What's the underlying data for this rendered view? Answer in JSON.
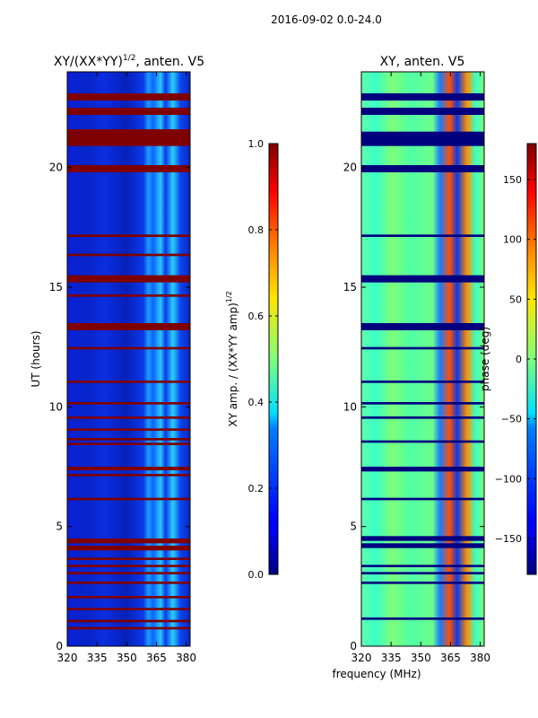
{
  "figure_title": "2016-09-02 0.0-24.0",
  "chart_data": [
    {
      "type": "heatmap",
      "title": "XY/(XX*YY)",
      "title_superscript": "1/2",
      "title_suffix": ", anten. V5",
      "xlabel": "",
      "ylabel": "UT (hours)",
      "xlim": [
        320,
        382
      ],
      "ylim": [
        0,
        24
      ],
      "xticks": [
        320,
        335,
        350,
        365,
        380
      ],
      "yticks": [
        0,
        5,
        10,
        15,
        20
      ],
      "colorbar": {
        "label": "XY amp. / (XX*YY amp)",
        "label_superscript": "1/2",
        "range": [
          0.0,
          1.0
        ],
        "ticks": [
          "0.0",
          "0.2",
          "0.4",
          "0.6",
          "0.8",
          "1.0"
        ],
        "colormap": "jet"
      },
      "saturated_bands_hours": [
        [
          0.7,
          0.8
        ],
        [
          1.0,
          1.1
        ],
        [
          1.5,
          1.6
        ],
        [
          2.0,
          2.1
        ],
        [
          2.6,
          2.7
        ],
        [
          3.0,
          3.1
        ],
        [
          3.3,
          3.4
        ],
        [
          3.6,
          3.7
        ],
        [
          4.0,
          4.2
        ],
        [
          4.3,
          4.5
        ],
        [
          6.1,
          6.2
        ],
        [
          7.1,
          7.2
        ],
        [
          7.35,
          7.5
        ],
        [
          8.4,
          8.5
        ],
        [
          8.6,
          8.7
        ],
        [
          9.0,
          9.1
        ],
        [
          9.5,
          9.6
        ],
        [
          10.1,
          10.2
        ],
        [
          11.0,
          11.1
        ],
        [
          12.4,
          12.5
        ],
        [
          13.2,
          13.5
        ],
        [
          14.6,
          14.7
        ],
        [
          15.2,
          15.5
        ],
        [
          16.3,
          16.4
        ],
        [
          17.1,
          17.2
        ],
        [
          19.8,
          20.1
        ],
        [
          20.9,
          21.6
        ],
        [
          22.2,
          22.5
        ],
        [
          22.8,
          23.1
        ]
      ],
      "bright_column_range_mhz": [
        365,
        380
      ]
    },
    {
      "type": "heatmap",
      "title": "XY, anten. V5",
      "xlabel": "frequency (MHz)",
      "ylabel": "",
      "xlim": [
        320,
        382
      ],
      "ylim": [
        0,
        24
      ],
      "xticks": [
        320,
        335,
        350,
        365,
        380
      ],
      "yticks": [
        0,
        5,
        10,
        15,
        20
      ],
      "colorbar": {
        "label": "phase (deg)",
        "range": [
          -180,
          180
        ],
        "ticks": [
          "−150",
          "−100",
          "−50",
          "0",
          "50",
          "100",
          "150"
        ],
        "tick_values": [
          -150,
          -100,
          -50,
          0,
          50,
          100,
          150
        ],
        "colormap": "jet"
      },
      "dark_bands_hours": [
        [
          1.1,
          1.2
        ],
        [
          2.6,
          2.7
        ],
        [
          3.0,
          3.1
        ],
        [
          3.3,
          3.4
        ],
        [
          4.1,
          4.3
        ],
        [
          4.4,
          4.6
        ],
        [
          6.1,
          6.2
        ],
        [
          7.3,
          7.5
        ],
        [
          8.5,
          8.6
        ],
        [
          9.5,
          9.6
        ],
        [
          10.1,
          10.2
        ],
        [
          11.0,
          11.1
        ],
        [
          12.4,
          12.5
        ],
        [
          13.2,
          13.5
        ],
        [
          15.2,
          15.5
        ],
        [
          17.1,
          17.2
        ],
        [
          19.8,
          20.1
        ],
        [
          20.9,
          21.5
        ],
        [
          22.2,
          22.5
        ],
        [
          22.8,
          23.1
        ]
      ],
      "noisy_column_range_mhz": [
        362,
        380
      ]
    }
  ]
}
